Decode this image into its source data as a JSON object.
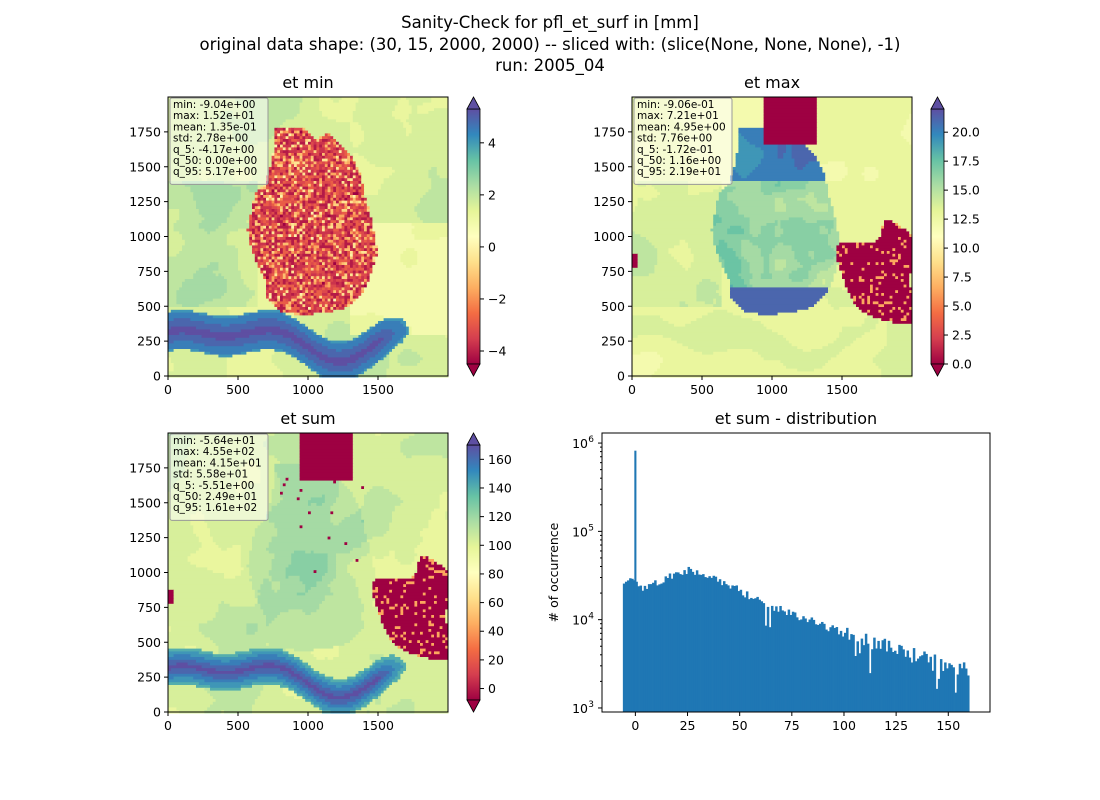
{
  "figure": {
    "title_lines": [
      "Sanity-Check for pfl_et_surf in [mm]",
      "original data shape: (30, 15, 2000, 2000) -- sliced with: (slice(None, None, None), -1)",
      "run: 2005_04"
    ]
  },
  "colors": {
    "spectral_low": "#9e0142",
    "spectral_mid": "#ffffbf",
    "spectral_high": "#5e4fa2",
    "hist_bar": "#1f77b4"
  },
  "panels": [
    {
      "title": "et min",
      "stats": [
        "min: -9.04e+00",
        "max: 1.52e+01",
        "mean: 1.35e-01",
        "std: 2.78e+00",
        "q_5: -4.17e+00",
        "q_50: 0.00e+00",
        "q_95: 5.17e+00"
      ],
      "x_ticks": [
        "0",
        "500",
        "1000",
        "1500"
      ],
      "y_ticks": [
        "0",
        "250",
        "500",
        "750",
        "1000",
        "1250",
        "1500",
        "1750"
      ],
      "colorbar": {
        "vmin": -4.5,
        "vmax": 5.3,
        "ticks": [
          -4,
          -2,
          0,
          2,
          4
        ],
        "labels": [
          "−4",
          "−2",
          "0",
          "2",
          "4"
        ]
      }
    },
    {
      "title": "et max",
      "stats": [
        "min: -9.06e-01",
        "max: 7.21e+01",
        "mean: 4.95e+00",
        "std: 7.76e+00",
        "q_5: -1.72e-01",
        "q_50: 1.16e+00",
        "q_95: 2.19e+01"
      ],
      "x_ticks": [
        "0",
        "500",
        "1000",
        "1500"
      ],
      "y_ticks": [
        "0",
        "250",
        "500",
        "750",
        "1000",
        "1250",
        "1500",
        "1750"
      ],
      "colorbar": {
        "vmin": 0.0,
        "vmax": 22.0,
        "ticks": [
          0,
          2.5,
          5,
          7.5,
          10,
          12.5,
          15,
          17.5,
          20
        ],
        "labels": [
          "0.0",
          "2.5",
          "5.0",
          "7.5",
          "10.0",
          "12.5",
          "15.0",
          "17.5",
          "20.0"
        ]
      }
    },
    {
      "title": "et sum",
      "stats": [
        "min: -5.64e+01",
        "max: 4.55e+02",
        "mean: 4.15e+01",
        "std: 5.58e+01",
        "q_5: -5.51e+00",
        "q_50: 2.49e+01",
        "q_95: 1.61e+02"
      ],
      "x_ticks": [
        "0",
        "500",
        "1000",
        "1500"
      ],
      "y_ticks": [
        "0",
        "250",
        "500",
        "750",
        "1000",
        "1250",
        "1500",
        "1750"
      ],
      "colorbar": {
        "vmin": -8.0,
        "vmax": 170.0,
        "ticks": [
          0,
          20,
          40,
          60,
          80,
          100,
          120,
          140,
          160
        ],
        "labels": [
          "0",
          "20",
          "40",
          "60",
          "80",
          "100",
          "120",
          "140",
          "160"
        ]
      }
    }
  ],
  "chart_data": [
    {
      "type": "heatmap",
      "title": "et min",
      "x_range": [
        0,
        2000
      ],
      "y_range": [
        0,
        2000
      ],
      "colormap": "Spectral",
      "color_range": [
        -4.5,
        5.3
      ]
    },
    {
      "type": "heatmap",
      "title": "et max",
      "x_range": [
        0,
        2000
      ],
      "y_range": [
        0,
        2000
      ],
      "colormap": "Spectral",
      "color_range": [
        0.0,
        22.0
      ]
    },
    {
      "type": "heatmap",
      "title": "et sum",
      "x_range": [
        0,
        2000
      ],
      "y_range": [
        0,
        2000
      ],
      "colormap": "Spectral",
      "color_range": [
        -8.0,
        170.0
      ]
    },
    {
      "type": "bar",
      "title": "et sum - distribution",
      "ylabel": "# of occurrence",
      "yscale": "log",
      "xlim": [
        -16,
        170
      ],
      "ylim": [
        900,
        1300000
      ],
      "x_ticks": [
        0,
        25,
        50,
        75,
        100,
        125,
        150
      ],
      "y_ticks": [
        1000,
        10000,
        100000,
        1000000
      ],
      "y_tick_labels": [
        {
          "base": "10",
          "exp": "3"
        },
        {
          "base": "10",
          "exp": "4"
        },
        {
          "base": "10",
          "exp": "5"
        },
        {
          "base": "10",
          "exp": "6"
        }
      ],
      "x": [
        -6,
        0,
        5,
        10,
        15,
        20,
        25,
        30,
        35,
        40,
        45,
        50,
        55,
        60,
        65,
        70,
        75,
        80,
        85,
        90,
        95,
        100,
        105,
        110,
        115,
        120,
        125,
        130,
        135,
        140,
        145,
        150,
        155,
        160
      ],
      "values": [
        27000,
        820000,
        23000,
        27000,
        30000,
        34000,
        37000,
        33000,
        30000,
        27000,
        25000,
        21000,
        18000,
        16000,
        14000,
        13000,
        11500,
        10500,
        9500,
        8500,
        7800,
        7000,
        6400,
        5900,
        5400,
        4900,
        4500,
        4100,
        3800,
        3500,
        3200,
        3000,
        2800,
        2700
      ]
    }
  ]
}
